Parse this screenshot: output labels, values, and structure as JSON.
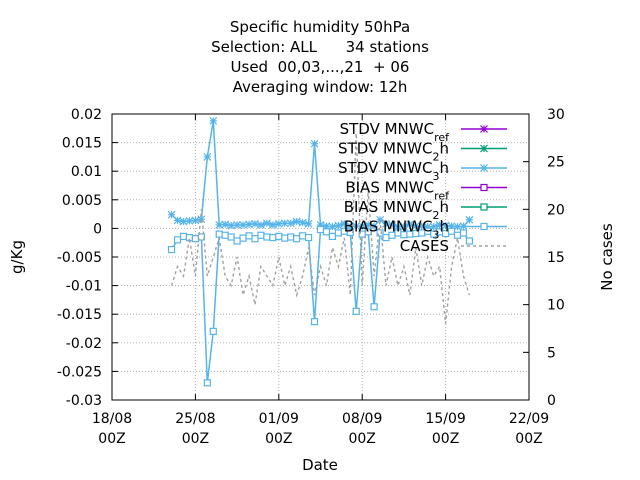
{
  "chart_data": {
    "type": "line",
    "title_lines": [
      "Specific humidity 50hPa",
      "Selection: ALL      34 stations",
      "Used  00,03,...,21  + 06",
      "Averaging window: 12h"
    ],
    "xlabel": "Date",
    "ylabel": "g/Kg",
    "y2label": "No cases",
    "x_ticks": [
      {
        "day": 0,
        "line1": "18/08",
        "line2": "00Z"
      },
      {
        "day": 7,
        "line1": "25/08",
        "line2": "00Z"
      },
      {
        "day": 14,
        "line1": "01/09",
        "line2": "00Z"
      },
      {
        "day": 21,
        "line1": "08/09",
        "line2": "00Z"
      },
      {
        "day": 28,
        "line1": "15/09",
        "line2": "00Z"
      },
      {
        "day": 35,
        "line1": "22/09",
        "line2": "00Z"
      }
    ],
    "xlim": [
      0,
      35
    ],
    "ylim": [
      -0.03,
      0.02
    ],
    "y_ticks": [
      0.02,
      0.015,
      0.01,
      0.005,
      0,
      -0.005,
      -0.01,
      -0.015,
      -0.02,
      -0.025,
      -0.03
    ],
    "y_tick_labels": [
      "0.02",
      "0.015",
      "0.01",
      "0.005",
      "0",
      "-0.005",
      "-0.01",
      "-0.015",
      "-0.02",
      "-0.025",
      "-0.03"
    ],
    "y2lim": [
      0,
      30
    ],
    "y2_ticks": [
      0,
      5,
      10,
      15,
      20,
      25,
      30
    ],
    "grid": true,
    "legend_position": "top-right",
    "series": [
      {
        "name": "STDV MNWC_ref",
        "legend_parts": [
          "STDV MNWC",
          "ref"
        ],
        "color": "#9400d3",
        "marker": "asterisk",
        "axis": "y1",
        "x": [],
        "y": []
      },
      {
        "name": "STDV MNWC_2h",
        "legend_parts": [
          "STDV MNWC",
          "2",
          "h"
        ],
        "color": "#009e73",
        "marker": "asterisk",
        "axis": "y1",
        "x": [],
        "y": []
      },
      {
        "name": "STDV MNWC_3h",
        "legend_parts": [
          "STDV MNWC",
          "3",
          "h"
        ],
        "color": "#56b4e9",
        "marker": "asterisk",
        "axis": "y1",
        "x": [
          5.0,
          5.5,
          6.0,
          6.5,
          7.0,
          7.5,
          8.0,
          8.5,
          9.0,
          9.5,
          10.0,
          10.5,
          11.0,
          11.5,
          12.0,
          12.5,
          13.0,
          13.5,
          14.0,
          14.5,
          15.0,
          15.5,
          16.0,
          16.5,
          17.0,
          17.5,
          18.0,
          18.5,
          19.0,
          19.5,
          20.0,
          20.5,
          21.0,
          21.5,
          22.0,
          22.5,
          23.0,
          23.5,
          24.0,
          24.5,
          25.0,
          25.5,
          26.0,
          26.5,
          27.0,
          27.5,
          28.0,
          28.5,
          29.0,
          29.5,
          30.0
        ],
        "y": [
          0.0024,
          0.0014,
          0.0012,
          0.0013,
          0.0014,
          0.0016,
          0.0125,
          0.0188,
          0.0006,
          0.0007,
          0.0005,
          0.0006,
          0.0006,
          0.0007,
          0.0008,
          0.0006,
          0.0009,
          0.0006,
          0.0008,
          0.0009,
          0.0009,
          0.0012,
          0.001,
          0.0008,
          0.0148,
          0.0006,
          0.0004,
          0.0003,
          0.0005,
          0.0008,
          0.0004,
          0.0004,
          0.0004,
          0.0006,
          0.0004,
          0.0015,
          0.0008,
          0.0006,
          0.0003,
          0.0003,
          0.0007,
          0.0004,
          0.0004,
          0.0003,
          0.0003,
          0.0006,
          0.0005,
          0.0004,
          0.0003,
          0.0004,
          0.0015
        ]
      },
      {
        "name": "BIAS MNWC_ref",
        "legend_parts": [
          "BIAS MNWC",
          "ref"
        ],
        "color": "#9400d3",
        "marker": "square",
        "axis": "y1",
        "x": [],
        "y": []
      },
      {
        "name": "BIAS MNWC_2h",
        "legend_parts": [
          "BIAS MNWC",
          "2",
          "h"
        ],
        "color": "#009e73",
        "marker": "square",
        "axis": "y1",
        "x": [],
        "y": []
      },
      {
        "name": "BIAS MNWC_3h",
        "legend_parts": [
          "BIAS MNWC",
          "3",
          "h"
        ],
        "color": "#56b4e9",
        "marker": "square",
        "axis": "y1",
        "x": [
          5.0,
          5.5,
          6.0,
          6.5,
          7.0,
          7.5,
          8.0,
          8.5,
          9.0,
          9.5,
          10.0,
          10.5,
          11.0,
          11.5,
          12.0,
          12.5,
          13.0,
          13.5,
          14.0,
          14.5,
          15.0,
          15.5,
          16.0,
          16.5,
          17.0,
          17.5,
          18.0,
          18.5,
          19.0,
          19.5,
          20.0,
          20.5,
          21.0,
          21.5,
          22.0,
          22.5,
          23.0,
          23.5,
          24.0,
          24.5,
          25.0,
          25.5,
          26.0,
          26.5,
          27.0,
          27.5,
          28.0,
          28.5,
          29.0,
          29.5,
          30.0
        ],
        "y": [
          -0.0037,
          -0.002,
          -0.0014,
          -0.0016,
          -0.0018,
          -0.0015,
          -0.027,
          -0.018,
          -0.001,
          -0.0012,
          -0.0015,
          -0.0022,
          -0.0017,
          -0.0013,
          -0.0018,
          -0.0012,
          -0.0015,
          -0.0016,
          -0.0014,
          -0.0017,
          -0.0015,
          -0.0018,
          -0.0013,
          -0.0016,
          -0.0163,
          -0.0002,
          -0.0006,
          -0.0014,
          -0.0008,
          -0.0005,
          -0.0007,
          -0.0145,
          -0.001,
          -0.0006,
          -0.0137,
          -0.0008,
          -0.0016,
          -0.0012,
          -0.0008,
          -0.0011,
          -0.001,
          -0.0009,
          -0.0008,
          -0.0005,
          -0.001,
          -0.0006,
          -0.0009,
          -0.0005,
          -0.0012,
          -0.0008,
          -0.0022
        ]
      },
      {
        "name": "CASES",
        "legend_parts": [
          "CASES"
        ],
        "color": "#a0a0a0",
        "marker": "none",
        "dashed": true,
        "axis": "y2",
        "x": [
          5.0,
          5.5,
          6.0,
          6.5,
          7.0,
          7.5,
          8.0,
          8.5,
          9.0,
          9.5,
          10.0,
          10.5,
          11.0,
          11.5,
          12.0,
          12.5,
          13.0,
          13.5,
          14.0,
          14.5,
          15.0,
          15.5,
          16.0,
          16.5,
          17.0,
          17.5,
          18.0,
          18.5,
          19.0,
          19.5,
          20.0,
          20.5,
          21.0,
          21.5,
          22.0,
          22.5,
          23.0,
          23.5,
          24.0,
          24.5,
          25.0,
          25.5,
          26.0,
          26.5,
          27.0,
          27.5,
          28.0,
          28.5,
          29.0,
          29.5,
          30.0
        ],
        "y": [
          12,
          14,
          13,
          17,
          13,
          20,
          13,
          15,
          17,
          13,
          12,
          15,
          11,
          13,
          10,
          14,
          13,
          12,
          15,
          12,
          14,
          11,
          13,
          16,
          11,
          14,
          12,
          16,
          14,
          17,
          11,
          28,
          12,
          22,
          13,
          19,
          12,
          15,
          12,
          14,
          11,
          16,
          12,
          15,
          13,
          14,
          8,
          14,
          17,
          13,
          11
        ]
      }
    ]
  }
}
